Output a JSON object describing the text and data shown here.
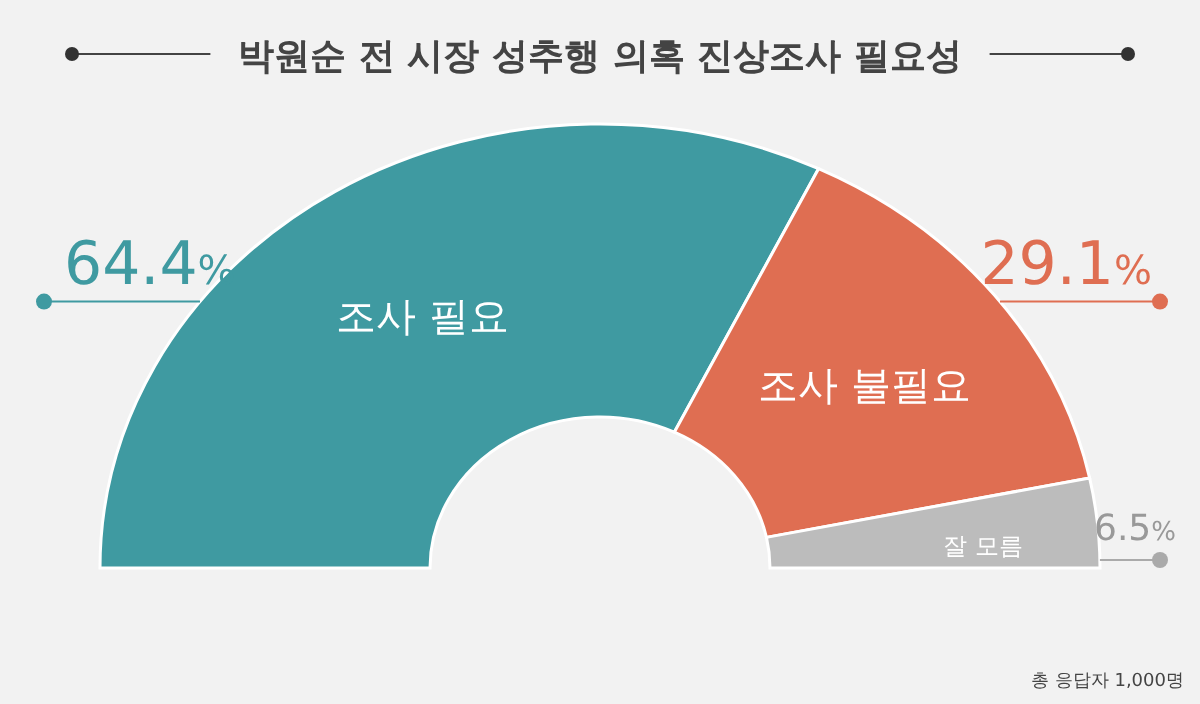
{
  "chart_data": {
    "type": "donut",
    "title": "박원순 전 시장 성추행 의혹 진상조사 필요성",
    "categories": [
      "조사 필요",
      "조사 불필요",
      "잘 모름"
    ],
    "values": [
      64.4,
      29.1,
      6.5
    ],
    "colors": [
      "#3f9aa1",
      "#df6e52",
      "#bcbcbc"
    ],
    "value_labels": [
      "64.4%",
      "29.1%",
      "6.5%"
    ],
    "annotations": [
      "총 응답자 1,000명"
    ]
  }
}
